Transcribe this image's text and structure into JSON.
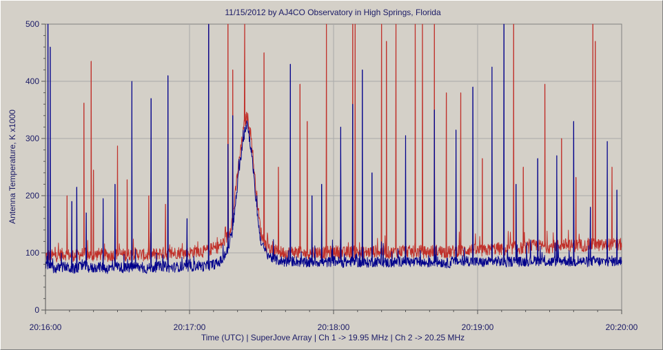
{
  "chart_data": {
    "type": "line",
    "title": "11/15/2012  by  AJ4CO Observatory  in  High Springs, Florida",
    "xlabel": "Time (UTC)  |  SuperJove Array  |  Ch 1 -> 19.95 MHz  |  Ch 2 -> 20.25 MHz",
    "ylabel": "Antenna Temperature, K  x1000",
    "x_ticks": [
      "20:16:00",
      "20:17:00",
      "20:18:00",
      "20:19:00",
      "20:20:00"
    ],
    "y_ticks": [
      0,
      100,
      200,
      300,
      400,
      500
    ],
    "ylim": [
      0,
      500
    ],
    "xlim": [
      "20:16:00",
      "20:20:00"
    ],
    "grid": true,
    "legend": "none",
    "colors": {
      "ch1": "#00008b",
      "ch2": "#c0302a",
      "grid": "#a9a9a9",
      "background": "#d4d0c8"
    },
    "series": [
      {
        "color": "#00008b",
        "x_seconds": [
          0,
          2,
          4,
          6,
          8,
          10,
          12,
          14,
          16,
          18,
          20,
          22,
          24,
          26,
          28,
          30,
          32,
          34,
          36,
          38,
          40,
          42,
          44,
          46,
          48,
          50,
          52,
          54,
          56,
          58,
          60,
          62,
          64,
          66,
          68,
          70,
          72,
          74,
          76,
          78,
          80,
          82,
          83,
          84,
          85,
          86,
          87,
          88,
          89,
          90,
          92,
          94,
          96,
          98,
          100,
          102,
          104,
          106,
          108,
          110,
          112,
          114,
          116,
          118,
          120,
          122,
          124,
          126,
          128,
          130,
          132,
          134,
          136,
          138,
          140,
          142,
          144,
          146,
          148,
          150,
          152,
          154,
          156,
          158,
          160,
          162,
          164,
          166,
          168,
          170,
          172,
          174,
          176,
          178,
          180,
          182,
          184,
          186,
          188,
          190,
          192,
          194,
          196,
          198,
          200,
          202,
          204,
          206,
          208,
          210,
          212,
          214,
          216,
          218,
          220,
          222,
          224,
          226,
          228,
          230,
          232,
          234,
          236,
          238,
          240
        ],
        "values": [
          78,
          75,
          72,
          74,
          76,
          73,
          72,
          75,
          78,
          74,
          73,
          76,
          74,
          72,
          75,
          77,
          74,
          73,
          75,
          76,
          74,
          72,
          74,
          75,
          77,
          76,
          74,
          75,
          76,
          74,
          75,
          77,
          78,
          76,
          78,
          80,
          82,
          90,
          105,
          140,
          220,
          290,
          310,
          330,
          300,
          270,
          220,
          180,
          140,
          115,
          100,
          92,
          88,
          86,
          84,
          85,
          86,
          84,
          82,
          83,
          85,
          84,
          83,
          84,
          86,
          85,
          83,
          84,
          85,
          84,
          82,
          83,
          84,
          85,
          84,
          83,
          82,
          84,
          85,
          86,
          84,
          83,
          84,
          82,
          83,
          85,
          84,
          83,
          82,
          84,
          85,
          84,
          86,
          85,
          84,
          83,
          84,
          85,
          86,
          84,
          83,
          85,
          86,
          84,
          85,
          86,
          87,
          86,
          85,
          84,
          85,
          86,
          87,
          85,
          84,
          86,
          85,
          84,
          86,
          85,
          84,
          85,
          86,
          84,
          85
        ]
      },
      {
        "color": "#c0302a",
        "x_seconds": [
          0,
          2,
          4,
          6,
          8,
          10,
          12,
          14,
          16,
          18,
          20,
          22,
          24,
          26,
          28,
          30,
          32,
          34,
          36,
          38,
          40,
          42,
          44,
          46,
          48,
          50,
          52,
          54,
          56,
          58,
          60,
          62,
          64,
          66,
          68,
          70,
          72,
          74,
          76,
          78,
          80,
          82,
          83,
          84,
          85,
          86,
          87,
          88,
          89,
          90,
          92,
          94,
          96,
          98,
          100,
          102,
          104,
          106,
          108,
          110,
          112,
          114,
          116,
          118,
          120,
          122,
          124,
          126,
          128,
          130,
          132,
          134,
          136,
          138,
          140,
          142,
          144,
          146,
          148,
          150,
          152,
          154,
          156,
          158,
          160,
          162,
          164,
          166,
          168,
          170,
          172,
          174,
          176,
          178,
          180,
          182,
          184,
          186,
          188,
          190,
          192,
          194,
          196,
          198,
          200,
          202,
          204,
          206,
          208,
          210,
          212,
          214,
          216,
          218,
          220,
          222,
          224,
          226,
          228,
          230,
          232,
          234,
          236,
          238,
          240
        ],
        "values": [
          95,
          96,
          94,
          97,
          98,
          96,
          95,
          97,
          99,
          96,
          95,
          98,
          97,
          95,
          96,
          99,
          97,
          96,
          98,
          99,
          97,
          95,
          97,
          98,
          100,
          99,
          98,
          100,
          101,
          99,
          100,
          103,
          104,
          102,
          105,
          108,
          110,
          118,
          130,
          160,
          240,
          300,
          330,
          340,
          320,
          290,
          240,
          200,
          160,
          130,
          112,
          106,
          103,
          101,
          100,
          101,
          102,
          100,
          99,
          100,
          102,
          101,
          100,
          101,
          103,
          102,
          100,
          101,
          102,
          101,
          100,
          101,
          102,
          103,
          102,
          101,
          100,
          102,
          103,
          104,
          102,
          101,
          103,
          101,
          102,
          104,
          103,
          102,
          101,
          103,
          104,
          103,
          106,
          105,
          104,
          103,
          105,
          106,
          108,
          106,
          105,
          108,
          110,
          108,
          109,
          111,
          113,
          112,
          111,
          110,
          112,
          113,
          115,
          113,
          112,
          114,
          113,
          112,
          115,
          114,
          113,
          114,
          116,
          113,
          115
        ]
      }
    ],
    "spikes_ch1": [
      [
        1,
        500
      ],
      [
        2,
        460
      ],
      [
        6,
        80
      ],
      [
        11,
        190
      ],
      [
        13,
        215
      ],
      [
        17,
        170
      ],
      [
        24,
        195
      ],
      [
        29,
        220
      ],
      [
        36,
        400
      ],
      [
        44,
        370
      ],
      [
        51,
        410
      ],
      [
        59,
        160
      ],
      [
        68,
        500
      ],
      [
        76,
        290
      ],
      [
        78,
        340
      ],
      [
        83,
        320
      ],
      [
        88,
        200
      ],
      [
        102,
        430
      ],
      [
        111,
        200
      ],
      [
        115,
        220
      ],
      [
        123,
        320
      ],
      [
        128,
        360
      ],
      [
        132,
        420
      ],
      [
        136,
        240
      ],
      [
        150,
        305
      ],
      [
        162,
        350
      ],
      [
        171,
        315
      ],
      [
        178,
        390
      ],
      [
        186,
        425
      ],
      [
        191,
        500
      ],
      [
        196,
        220
      ],
      [
        205,
        265
      ],
      [
        213,
        270
      ],
      [
        220,
        330
      ],
      [
        227,
        180
      ],
      [
        234,
        295
      ],
      [
        238,
        210
      ]
    ],
    "spikes_ch2": [
      [
        1,
        120
      ],
      [
        4,
        110
      ],
      [
        9,
        200
      ],
      [
        16,
        362
      ],
      [
        19,
        435
      ],
      [
        20,
        245
      ],
      [
        30,
        287
      ],
      [
        34,
        228
      ],
      [
        43,
        200
      ],
      [
        50,
        185
      ],
      [
        68,
        500
      ],
      [
        76,
        500
      ],
      [
        78,
        420
      ],
      [
        83,
        500
      ],
      [
        91,
        450
      ],
      [
        97,
        250
      ],
      [
        106,
        395
      ],
      [
        109,
        330
      ],
      [
        117,
        500
      ],
      [
        128,
        500
      ],
      [
        129,
        500
      ],
      [
        140,
        500
      ],
      [
        142,
        470
      ],
      [
        146,
        500
      ],
      [
        154,
        500
      ],
      [
        157,
        500
      ],
      [
        162,
        500
      ],
      [
        167,
        380
      ],
      [
        173,
        380
      ],
      [
        182,
        265
      ],
      [
        195,
        500
      ],
      [
        199,
        250
      ],
      [
        208,
        395
      ],
      [
        215,
        300
      ],
      [
        221,
        232
      ],
      [
        228,
        500
      ],
      [
        229,
        470
      ],
      [
        236,
        250
      ]
    ]
  }
}
